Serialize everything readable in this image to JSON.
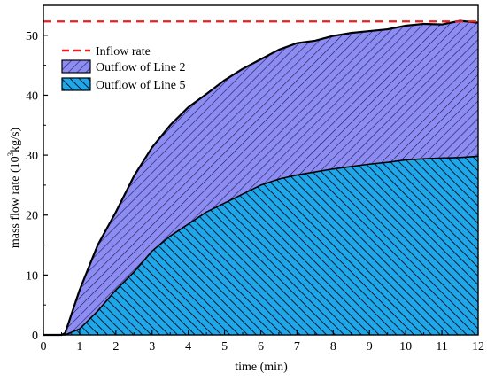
{
  "chart_data": {
    "type": "area",
    "title": "",
    "xlabel": "time (min)",
    "ylabel_main": "mass flow rate (10",
    "ylabel_sup": "3",
    "ylabel_tail": "kg/s)",
    "xlim": [
      0,
      12
    ],
    "ylim": [
      0,
      55
    ],
    "xticks": [
      0,
      1,
      2,
      3,
      4,
      5,
      6,
      7,
      8,
      9,
      10,
      11,
      12
    ],
    "yticks": [
      0,
      10,
      20,
      30,
      40,
      50
    ],
    "grid": false,
    "legend_position": "top-left",
    "inflow": {
      "name": "Inflow rate",
      "value": 52.3,
      "color": "#e8201e"
    },
    "series": [
      {
        "name": "Outflow of Line 2",
        "fill": "#8c8cf2",
        "hatch_color": "#1a1a50",
        "stacked_on": "Outflow of Line 5",
        "x": [
          0,
          0.5,
          0.6,
          1,
          1.5,
          2,
          2.5,
          3,
          3.5,
          4,
          4.5,
          5,
          5.5,
          6,
          6.5,
          7,
          7.5,
          8,
          8.5,
          9,
          9.5,
          10,
          10.5,
          11,
          11.5,
          12
        ],
        "total": [
          0,
          0,
          0.3,
          7.5,
          15,
          20.5,
          26.5,
          31.3,
          35,
          38,
          40.2,
          42.5,
          44.4,
          46,
          47.6,
          48.7,
          49.1,
          49.9,
          50.4,
          50.7,
          51,
          51.6,
          51.9,
          51.8,
          52.4,
          52.1
        ]
      },
      {
        "name": "Outflow of Line 5",
        "fill": "#1ea7e9",
        "hatch_color": "#0c1a32",
        "x": [
          0,
          0.5,
          0.6,
          1,
          1.5,
          2,
          2.5,
          3,
          3.5,
          4,
          4.5,
          5,
          5.5,
          6,
          6.5,
          7,
          7.5,
          8,
          8.5,
          9,
          9.5,
          10,
          10.5,
          11,
          11.5,
          12
        ],
        "values": [
          0,
          0,
          0,
          1,
          4,
          7.5,
          10.5,
          14,
          16.5,
          18.5,
          20.5,
          22,
          23.5,
          25,
          26,
          26.7,
          27.2,
          27.7,
          28.1,
          28.5,
          28.8,
          29.2,
          29.4,
          29.5,
          29.6,
          29.8
        ]
      }
    ]
  }
}
